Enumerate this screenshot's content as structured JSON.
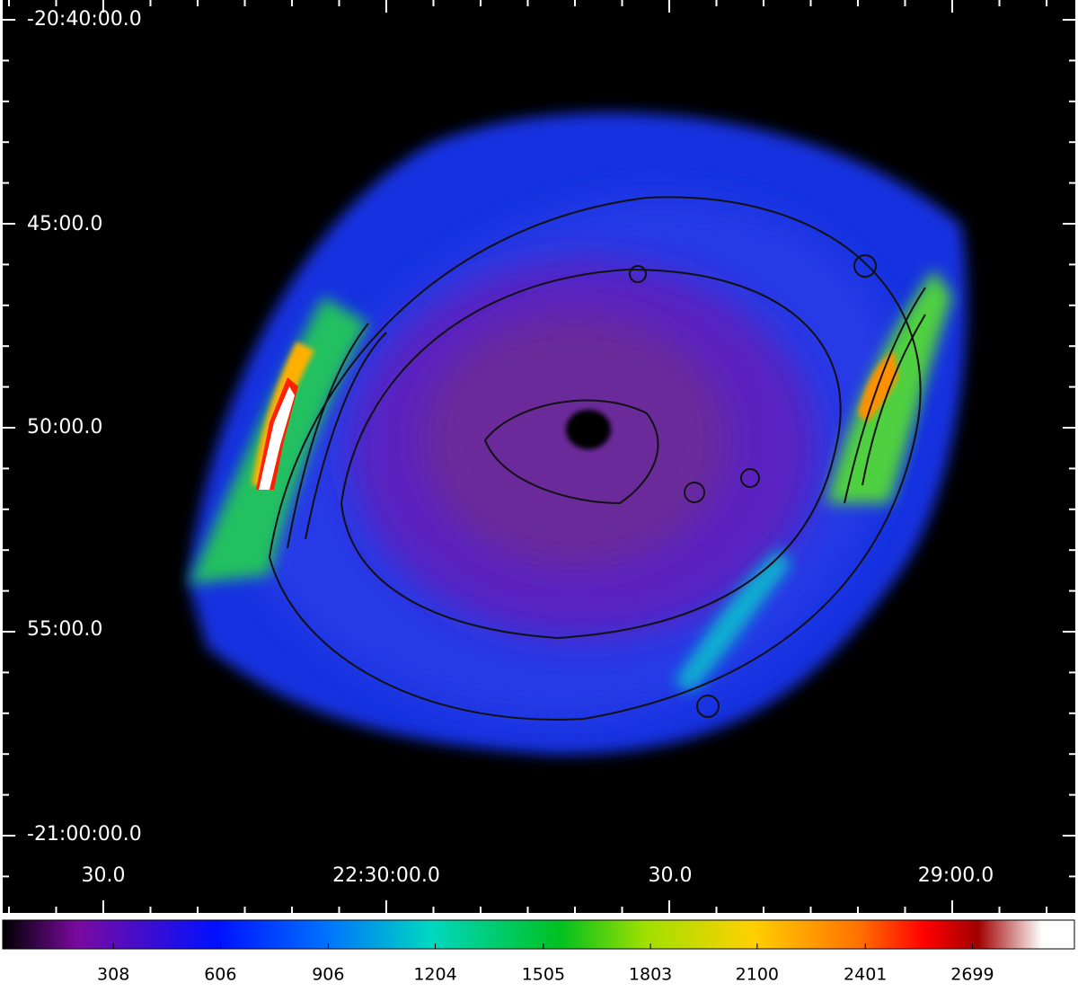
{
  "image": {
    "dec_labels": [
      "-20:40:00.0",
      "45:00.0",
      "50:00.0",
      "55:00.0",
      "-21:00:00.0"
    ],
    "ra_labels": [
      "30.0",
      "22:30:00.0",
      "30.0",
      "29:00.0"
    ]
  },
  "colorbar": {
    "lim": [
      0,
      2983
    ],
    "ticks": [
      308,
      606,
      906,
      1204,
      1505,
      1803,
      2100,
      2401,
      2699
    ]
  }
}
